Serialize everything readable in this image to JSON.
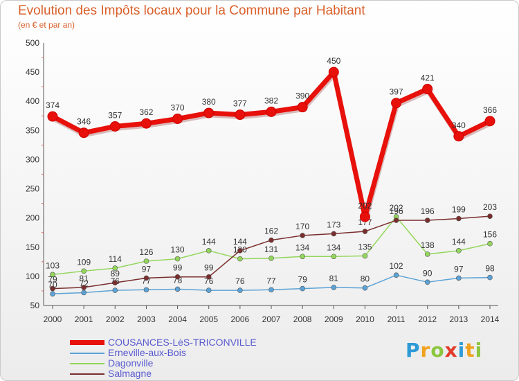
{
  "header": {
    "title": "Evolution des Impôts locaux pour la Commune par Habitant",
    "subtitle": "(en € et par an)"
  },
  "brand": {
    "letters": [
      "P",
      "r",
      "o",
      "x",
      "i",
      "t",
      "i"
    ],
    "colors": [
      "#2d9ad6",
      "#f0a21e",
      "#8cc63f",
      "#e23b2a",
      "#2d9ad6",
      "#f0a21e",
      "#8cc63f"
    ]
  },
  "chart_data": {
    "type": "line",
    "x": [
      "2000",
      "2001",
      "2002",
      "2003",
      "2004",
      "2005",
      "2006",
      "2007",
      "2008",
      "2009",
      "2010",
      "2011",
      "2012",
      "2013",
      "2014"
    ],
    "yticks": [
      "50",
      "100",
      "150",
      "200",
      "250",
      "300",
      "350",
      "400",
      "450",
      "500"
    ],
    "ylim": [
      50,
      500
    ],
    "grid": false,
    "legend_position": "bottom-left",
    "series": [
      {
        "name": "COUSANCES-LèS-TRICONVILLE",
        "color": "#e8100a",
        "values": [
          374,
          346,
          357,
          362,
          370,
          380,
          377,
          382,
          390,
          450,
          202,
          397,
          421,
          340,
          366
        ],
        "labels": [
          "374",
          "346",
          "357",
          "362",
          "370",
          "380",
          "377",
          "382",
          "390",
          "450",
          "202",
          "397",
          "421",
          "340",
          "366"
        ]
      },
      {
        "name": "Erneville-aux-Bois",
        "color": "#5ba3d6",
        "values": [
          70,
          72,
          76,
          77,
          78,
          76,
          76,
          77,
          79,
          81,
          80,
          102,
          90,
          97,
          98
        ],
        "labels": [
          "70",
          "72",
          "76",
          "77",
          "78",
          "76",
          "76",
          "77",
          "79",
          "81",
          "80",
          "102",
          "90",
          "97",
          "98"
        ]
      },
      {
        "name": "Dagonville",
        "color": "#94d65b",
        "values": [
          103,
          109,
          114,
          126,
          130,
          144,
          130,
          131,
          134,
          134,
          135,
          202,
          138,
          144,
          156
        ],
        "labels": [
          "103",
          "109",
          "114",
          "126",
          "130",
          "144",
          "130",
          "131",
          "134",
          "134",
          "135",
          "202",
          "138",
          "144",
          "156"
        ]
      },
      {
        "name": "Salmagne",
        "color": "#7a2d2d",
        "values": [
          79,
          81,
          89,
          97,
          99,
          99,
          144,
          162,
          170,
          173,
          177,
          196,
          196,
          199,
          203
        ],
        "labels": [
          "79",
          "81",
          "89",
          "97",
          "99",
          "99",
          "144",
          "162",
          "170",
          "173",
          "177",
          "196",
          "196",
          "199",
          "203"
        ]
      }
    ]
  }
}
